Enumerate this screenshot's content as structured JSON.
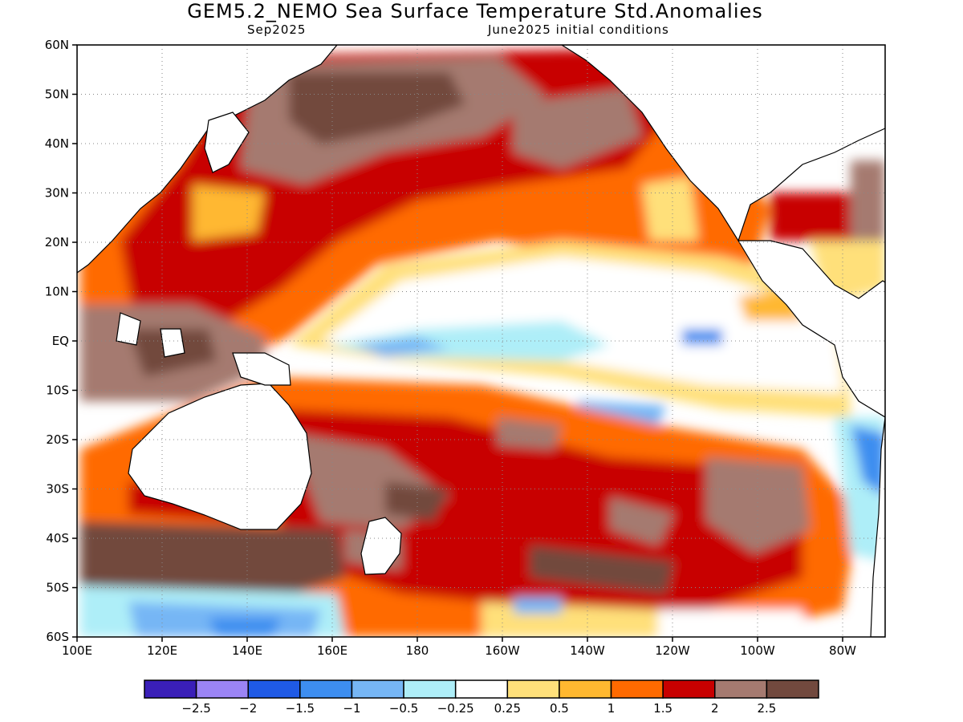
{
  "title": "GEM5.2_NEMO Sea Surface Temperature Std.Anomalies",
  "subtitle_left": "Sep2025",
  "subtitle_right": "June2025 initial conditions",
  "map": {
    "lon_range": [
      100,
      290
    ],
    "lat_range": [
      -60,
      60
    ],
    "lat_ticks": [
      {
        "value": 60,
        "label": "60N"
      },
      {
        "value": 50,
        "label": "50N"
      },
      {
        "value": 40,
        "label": "40N"
      },
      {
        "value": 30,
        "label": "30N"
      },
      {
        "value": 20,
        "label": "20N"
      },
      {
        "value": 10,
        "label": "10N"
      },
      {
        "value": 0,
        "label": "EQ"
      },
      {
        "value": -10,
        "label": "10S"
      },
      {
        "value": -20,
        "label": "20S"
      },
      {
        "value": -30,
        "label": "30S"
      },
      {
        "value": -40,
        "label": "40S"
      },
      {
        "value": -50,
        "label": "50S"
      },
      {
        "value": -60,
        "label": "60S"
      }
    ],
    "lon_ticks": [
      {
        "value": 100,
        "label": "100E"
      },
      {
        "value": 120,
        "label": "120E"
      },
      {
        "value": 140,
        "label": "140E"
      },
      {
        "value": 160,
        "label": "160E"
      },
      {
        "value": 180,
        "label": "180"
      },
      {
        "value": 200,
        "label": "160W"
      },
      {
        "value": 220,
        "label": "140W"
      },
      {
        "value": 240,
        "label": "120W"
      },
      {
        "value": 260,
        "label": "100W"
      },
      {
        "value": 280,
        "label": "80W"
      }
    ],
    "grid": true
  },
  "colorbar": {
    "colors": [
      "#3a1fb8",
      "#9b84f5",
      "#1f5ae6",
      "#3d8ef0",
      "#76b6f5",
      "#aeeef8",
      "#ffffff",
      "#ffe07a",
      "#ffb830",
      "#ff6a00",
      "#c80000",
      "#a57a70",
      "#72493e"
    ],
    "labels": [
      "-2.5",
      "-2",
      "-1.5",
      "-1",
      "-0.5",
      "-0.25",
      "0.25",
      "0.5",
      "1",
      "1.5",
      "2",
      "2.5"
    ]
  }
}
